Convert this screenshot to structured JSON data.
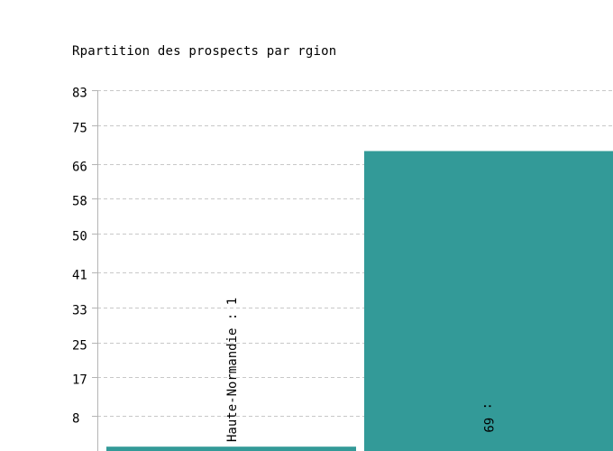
{
  "chart_data": {
    "type": "bar",
    "title": "Rpartition des prospects par rgion",
    "xlabel": "",
    "ylabel": "",
    "categories": [
      "Haute-Normandie",
      ""
    ],
    "values": [
      1,
      69
    ],
    "bar_labels": [
      "Haute-Normandie : 1",
      " : 69"
    ],
    "ylim": [
      0,
      83
    ],
    "yticks": [
      8,
      17,
      25,
      33,
      41,
      50,
      58,
      66,
      75,
      83
    ],
    "grid": true,
    "legend": "none",
    "colors": {
      "bar": "#339a98",
      "grid": "#c8c8c8",
      "axis": "#b4b4b4",
      "text": "#000000"
    }
  }
}
